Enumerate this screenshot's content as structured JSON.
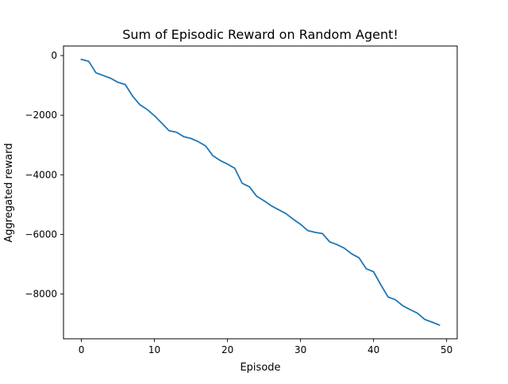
{
  "chart_data": {
    "type": "line",
    "title": "Sum of Episodic Reward on Random Agent!",
    "xlabel": "Episode",
    "ylabel": "Aggregated reward",
    "xlim": [
      -2.45,
      51.45
    ],
    "ylim": [
      -9500,
      320
    ],
    "xticks": [
      0,
      10,
      20,
      30,
      40,
      50
    ],
    "yticks": [
      0,
      -2000,
      -4000,
      -6000,
      -8000
    ],
    "xtick_labels": [
      "0",
      "10",
      "20",
      "30",
      "40",
      "50"
    ],
    "ytick_labels": [
      "0",
      "−2000",
      "−4000",
      "−6000",
      "−8000"
    ],
    "grid": false,
    "legend": "none",
    "series": [
      {
        "color": "#1f77b4",
        "x": [
          0,
          1,
          2,
          3,
          4,
          5,
          6,
          7,
          8,
          9,
          10,
          11,
          12,
          13,
          14,
          15,
          16,
          17,
          18,
          19,
          20,
          21,
          22,
          23,
          24,
          25,
          26,
          27,
          28,
          29,
          30,
          31,
          32,
          33,
          34,
          35,
          36,
          37,
          38,
          39,
          40,
          41,
          42,
          43,
          44,
          45,
          46,
          47,
          48,
          49
        ],
        "y": [
          -130,
          -190,
          -580,
          -670,
          -760,
          -900,
          -970,
          -1360,
          -1650,
          -1810,
          -2020,
          -2270,
          -2520,
          -2570,
          -2720,
          -2780,
          -2890,
          -3030,
          -3360,
          -3520,
          -3640,
          -3780,
          -4280,
          -4400,
          -4720,
          -4870,
          -5040,
          -5170,
          -5300,
          -5490,
          -5660,
          -5870,
          -5930,
          -5970,
          -6250,
          -6340,
          -6460,
          -6650,
          -6780,
          -7150,
          -7250,
          -7690,
          -8100,
          -8190,
          -8390,
          -8520,
          -8640,
          -8850,
          -8940,
          -9040
        ]
      }
    ]
  }
}
